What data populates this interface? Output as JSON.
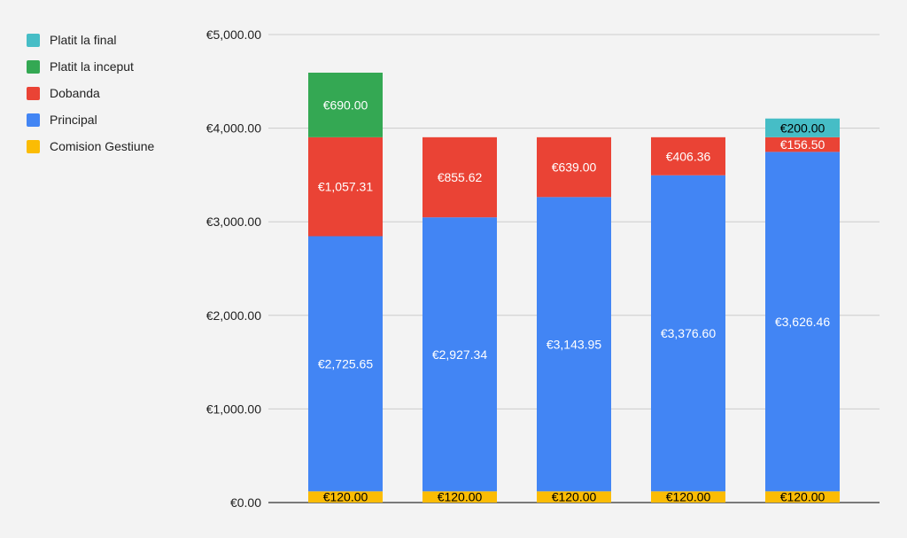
{
  "chart_data": {
    "type": "bar",
    "stacked": true,
    "title": "",
    "xlabel": "",
    "ylabel": "",
    "ylim": [
      0,
      5000
    ],
    "yticks": [
      0,
      1000,
      2000,
      3000,
      4000,
      5000
    ],
    "ytick_labels": [
      "€0.00",
      "€1,000.00",
      "€2,000.00",
      "€3,000.00",
      "€4,000.00",
      "€5,000.00"
    ],
    "grid": true,
    "legend_placement": "left",
    "legend_order": [
      "Platit la final",
      "Platit la inceput",
      "Dobanda",
      "Principal",
      "Comision Gestiune"
    ],
    "series": [
      {
        "name": "Comision Gestiune",
        "color": "#fbbc04",
        "label_color": "#000000",
        "values": [
          120,
          120,
          120,
          120,
          120
        ],
        "labels": [
          "€120.00",
          "€120.00",
          "€120.00",
          "€120.00",
          "€120.00"
        ]
      },
      {
        "name": "Principal",
        "color": "#4285f4",
        "label_color": "#ffffff",
        "values": [
          2725.65,
          2927.34,
          3143.95,
          3376.6,
          3626.46
        ],
        "labels": [
          "€2,725.65",
          "€2,927.34",
          "€3,143.95",
          "€3,376.60",
          "€3,626.46"
        ]
      },
      {
        "name": "Dobanda",
        "color": "#ea4335",
        "label_color": "#ffffff",
        "values": [
          1057.31,
          855.62,
          639.0,
          406.36,
          156.5
        ],
        "labels": [
          "€1,057.31",
          "€855.62",
          "€639.00",
          "€406.36",
          "€156.50"
        ]
      },
      {
        "name": "Platit la inceput",
        "color": "#34a853",
        "label_color": "#ffffff",
        "values": [
          690,
          0,
          0,
          0,
          0
        ],
        "labels": [
          "€690.00",
          "",
          "",
          "",
          ""
        ]
      },
      {
        "name": "Platit la final",
        "color": "#46bdc6",
        "label_color": "#000000",
        "values": [
          0,
          0,
          0,
          0,
          200
        ],
        "labels": [
          "",
          "",
          "",
          "",
          "€200.00"
        ]
      }
    ]
  }
}
